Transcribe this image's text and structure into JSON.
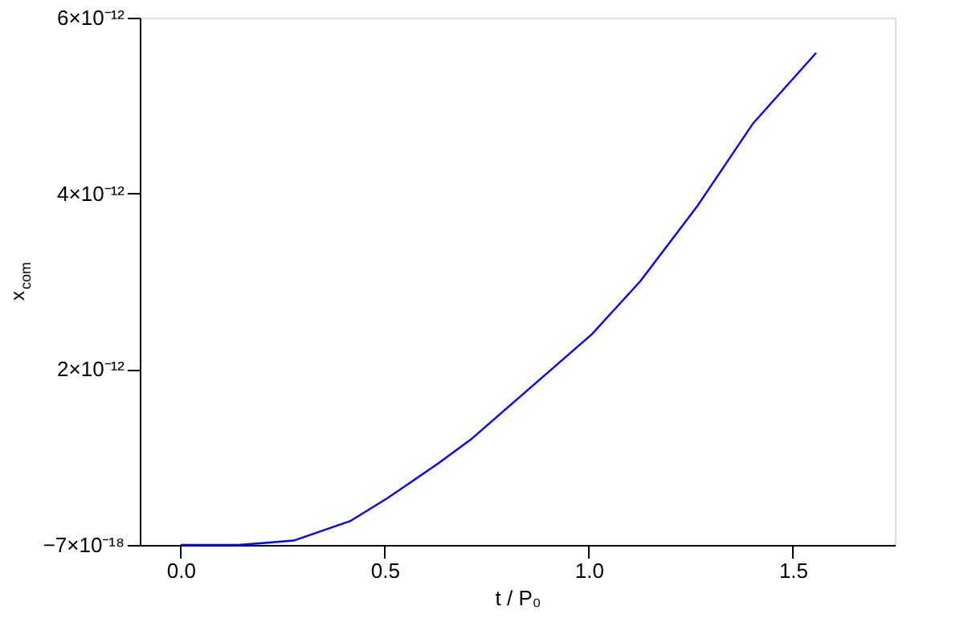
{
  "chart_data": {
    "type": "line",
    "xlabel": "t / P₀",
    "ylabel": "x$_{com}$",
    "x": [
      0,
      0.142,
      0.2,
      0.277,
      0.415,
      0.506,
      0.632,
      0.711,
      0.81,
      0.909,
      1.008,
      1.126,
      1.265,
      1.403,
      1.557
    ],
    "series": [
      {
        "color": "#0000ff",
        "values": [
          0,
          0,
          2e-14,
          5e-14,
          2.7e-13,
          5.3e-13,
          9.3e-13,
          1.2e-12,
          1.6e-12,
          2e-12,
          2.4e-12,
          3e-12,
          3.85e-12,
          4.8e-12,
          5.6e-12
        ]
      }
    ],
    "xlim": [
      -0.1,
      1.75
    ],
    "ylim": [
      -7e-18,
      6e-12
    ],
    "xticks": [
      {
        "value": 0,
        "label": "0.0"
      },
      {
        "value": 0.5,
        "label": "0.5"
      },
      {
        "value": 1,
        "label": "1.0"
      },
      {
        "value": 1.5,
        "label": "1.5"
      }
    ],
    "yticks": [
      {
        "value": -7e-18,
        "label": "−7×10⁻¹⁸"
      },
      {
        "value": 2e-12,
        "label": "2×10⁻¹²"
      },
      {
        "value": 4e-12,
        "label": "4×10⁻¹²"
      },
      {
        "value": 6e-12,
        "label": "6×10⁻¹²"
      }
    ],
    "grid": false,
    "legend": false,
    "marker": "none",
    "line_style": "solid"
  }
}
